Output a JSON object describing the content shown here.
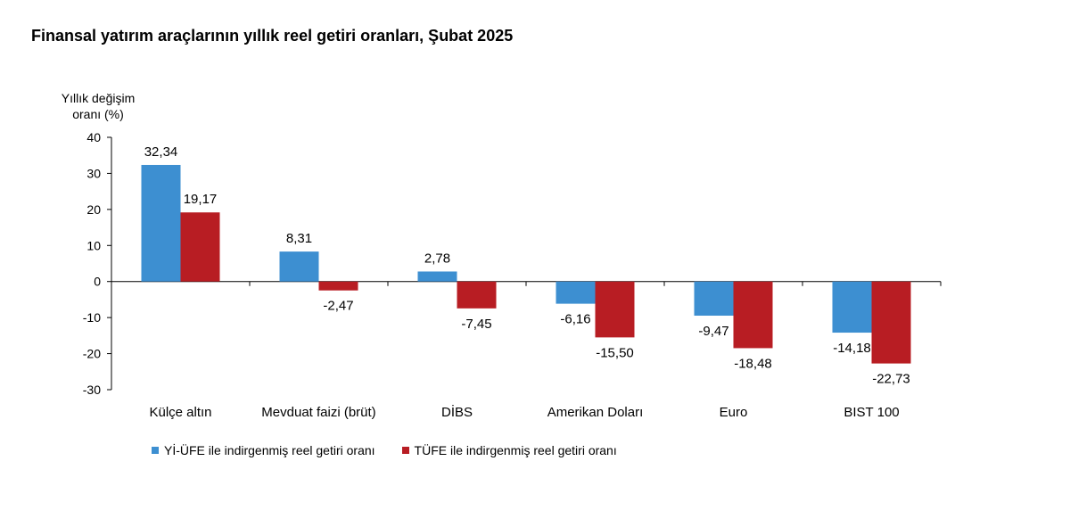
{
  "title": "Finansal yatırım araçlarının yıllık reel getiri oranları, Şubat 2025",
  "chart_data": {
    "type": "bar",
    "ylabel": "Yıllık değişim oranı (%)",
    "ylim": [
      -30,
      40
    ],
    "yticks": [
      40,
      30,
      20,
      10,
      0,
      -10,
      -20,
      -30
    ],
    "categories": [
      "Külçe altın",
      "Mevduat faizi (brüt)",
      "DİBS",
      "Amerikan Doları",
      "Euro",
      "BIST 100"
    ],
    "series": [
      {
        "name": "Yİ-ÜFE ile indirgenmiş reel getiri oranı",
        "color": "#3d8fd1",
        "values": [
          32.34,
          8.31,
          2.78,
          -6.16,
          -9.47,
          -14.18
        ],
        "labels": [
          "32,34",
          "8,31",
          "2,78",
          "-6,16",
          "-9,47",
          "-14,18"
        ]
      },
      {
        "name": "TÜFE ile indirgenmiş reel getiri oranı",
        "color": "#b81d23",
        "values": [
          19.17,
          -2.47,
          -7.45,
          -15.5,
          -18.48,
          -22.73
        ],
        "labels": [
          "19,17",
          "-2,47",
          "-7,45",
          "-15,50",
          "-18,48",
          "-22,73"
        ]
      }
    ],
    "legend_position": "bottom",
    "grid": false
  }
}
